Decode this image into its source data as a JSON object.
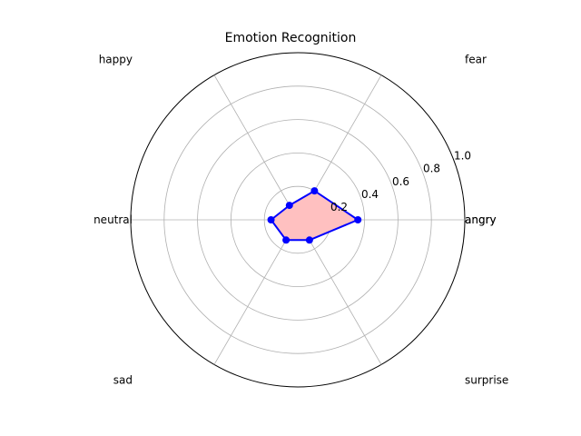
{
  "chart_data": {
    "type": "radar",
    "title": "Emotion Recognition",
    "categories": [
      "angry",
      "fear",
      "happy",
      "neutral",
      "sad",
      "surprise"
    ],
    "values": [
      0.36,
      0.2,
      0.1,
      0.16,
      0.14,
      0.14
    ],
    "closing_label": "angry",
    "rlim": [
      0,
      1.0
    ],
    "r_ticks": [
      "0.2",
      "0.4",
      "0.6",
      "0.8",
      "1.0"
    ],
    "r_tick_values": [
      0.2,
      0.4,
      0.6,
      0.8,
      1.0
    ],
    "grid": true,
    "line_color": "#0000ff",
    "marker_color": "#0000ff",
    "fill_color": "#ffc0c0"
  }
}
